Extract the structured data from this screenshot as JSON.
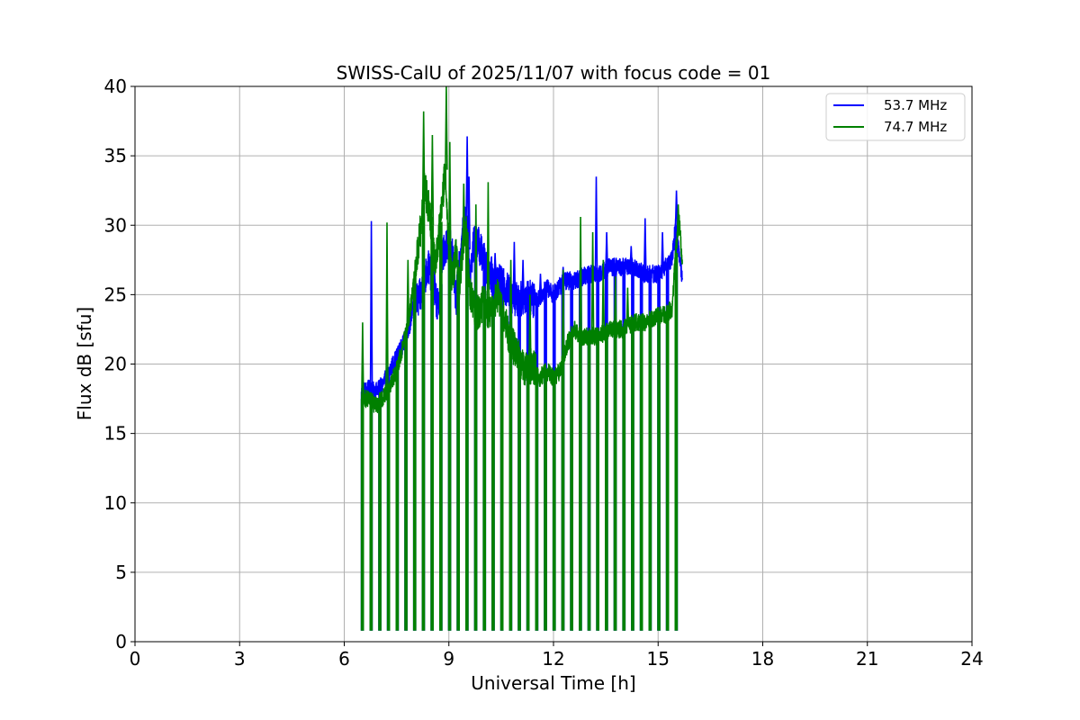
{
  "chart_data": {
    "type": "line",
    "title": "SWISS-CalU of 2025/11/07 with focus code = 01",
    "xlabel": "Universal Time [h]",
    "ylabel": "Flux dB [sfu]",
    "xlim": [
      0,
      24
    ],
    "ylim": [
      0,
      40
    ],
    "xticks": [
      0,
      3,
      6,
      9,
      12,
      15,
      18,
      21,
      24
    ],
    "yticks": [
      0,
      5,
      10,
      15,
      20,
      25,
      30,
      35,
      40
    ],
    "grid": true,
    "legend_position": "top-right",
    "calibration_dips": {
      "times": [
        6.5,
        6.75,
        7.0,
        7.25,
        7.5,
        7.75,
        8.0,
        8.25,
        8.5,
        8.75,
        9.0,
        9.25,
        9.5,
        9.75,
        10.0,
        10.25,
        10.5,
        10.75,
        11.0,
        11.25,
        11.5,
        11.75,
        12.0,
        12.25,
        12.5,
        12.75,
        13.0,
        13.25,
        13.5,
        13.75,
        14.0,
        14.25,
        14.5,
        14.75,
        15.0,
        15.25,
        15.5
      ],
      "floor": 0.8
    },
    "series": [
      {
        "name": "53.7 MHz",
        "color": "#0000ff",
        "x": [
          6.5,
          6.7,
          6.9,
          7.1,
          7.3,
          7.5,
          7.7,
          7.9,
          8.0,
          8.1,
          8.2,
          8.3,
          8.4,
          8.5,
          8.6,
          8.7,
          8.8,
          8.9,
          9.0,
          9.1,
          9.2,
          9.3,
          9.4,
          9.5,
          9.6,
          9.7,
          9.8,
          10.0,
          10.2,
          10.4,
          10.6,
          10.8,
          11.0,
          11.2,
          11.5,
          11.8,
          12.0,
          12.3,
          12.6,
          13.0,
          13.3,
          13.6,
          14.0,
          14.3,
          14.6,
          15.0,
          15.2,
          15.4,
          15.5,
          15.6,
          15.7
        ],
        "y": [
          18.0,
          18.2,
          18.0,
          18.5,
          19.5,
          20.5,
          21.5,
          23.0,
          25.0,
          24.5,
          25.0,
          26.0,
          27.0,
          26.5,
          25.0,
          24.0,
          27.5,
          28.5,
          29.0,
          28.0,
          24.5,
          27.0,
          29.5,
          30.5,
          26.0,
          28.5,
          29.0,
          27.5,
          26.5,
          26.0,
          25.5,
          25.0,
          24.5,
          25.0,
          24.5,
          25.5,
          25.0,
          26.0,
          26.0,
          26.5,
          26.5,
          27.0,
          27.0,
          27.0,
          26.5,
          26.5,
          27.0,
          27.5,
          30.0,
          28.0,
          26.0
        ],
        "spikes": [
          [
            6.75,
            30.3
          ],
          [
            8.55,
            28.5
          ],
          [
            9.5,
            36.4
          ],
          [
            9.55,
            33.5
          ],
          [
            10.3,
            28.0
          ],
          [
            10.85,
            28.8
          ],
          [
            11.1,
            27.5
          ],
          [
            11.6,
            26.5
          ],
          [
            12.25,
            27.0
          ],
          [
            13.2,
            33.5
          ],
          [
            13.5,
            29.5
          ],
          [
            14.2,
            28.5
          ],
          [
            14.6,
            30.5
          ],
          [
            15.1,
            29.5
          ],
          [
            15.5,
            32.5
          ]
        ]
      },
      {
        "name": "74.7 MHz",
        "color": "#008000",
        "x": [
          6.5,
          6.7,
          6.9,
          7.1,
          7.3,
          7.5,
          7.7,
          7.9,
          8.0,
          8.1,
          8.2,
          8.3,
          8.4,
          8.5,
          8.6,
          8.7,
          8.8,
          8.9,
          9.0,
          9.1,
          9.2,
          9.3,
          9.4,
          9.5,
          9.6,
          9.8,
          10.0,
          10.2,
          10.4,
          10.6,
          10.8,
          11.0,
          11.2,
          11.4,
          11.6,
          11.8,
          12.0,
          12.2,
          12.4,
          12.6,
          12.8,
          13.0,
          13.3,
          13.6,
          14.0,
          14.3,
          14.6,
          15.0,
          15.2,
          15.4,
          15.5,
          15.6,
          15.7
        ],
        "y": [
          17.5,
          17.5,
          17.0,
          17.5,
          18.5,
          19.5,
          21.5,
          24.0,
          26.0,
          28.0,
          30.0,
          33.0,
          31.5,
          30.0,
          27.0,
          29.0,
          31.5,
          34.0,
          27.5,
          26.0,
          28.0,
          25.5,
          28.5,
          29.5,
          25.0,
          23.5,
          24.5,
          23.5,
          25.0,
          23.0,
          21.5,
          20.5,
          19.5,
          20.0,
          19.0,
          19.5,
          19.0,
          19.5,
          21.5,
          22.5,
          22.0,
          22.0,
          22.0,
          22.5,
          22.5,
          23.0,
          23.0,
          23.5,
          23.5,
          24.0,
          28.0,
          30.5,
          27.0
        ],
        "spikes": [
          [
            6.5,
            23.0
          ],
          [
            7.2,
            30.2
          ],
          [
            7.8,
            27.5
          ],
          [
            8.25,
            38.2
          ],
          [
            8.5,
            36.5
          ],
          [
            8.9,
            40.0
          ],
          [
            9.0,
            36.0
          ],
          [
            9.4,
            33.0
          ],
          [
            9.75,
            31.5
          ],
          [
            10.1,
            33.1
          ],
          [
            10.75,
            27.5
          ],
          [
            11.3,
            25.0
          ],
          [
            12.25,
            26.8
          ],
          [
            12.75,
            30.6
          ],
          [
            13.1,
            29.5
          ],
          [
            13.4,
            27.5
          ],
          [
            13.75,
            26.3
          ],
          [
            14.1,
            25.5
          ],
          [
            15.3,
            24.5
          ],
          [
            15.55,
            31.5
          ]
        ]
      }
    ]
  }
}
